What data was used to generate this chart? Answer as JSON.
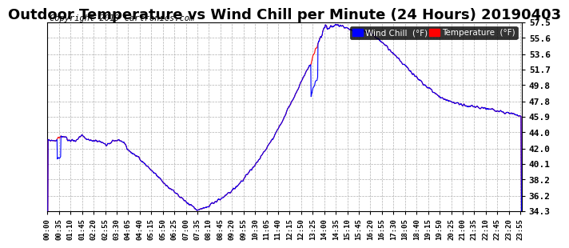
{
  "title": "Outdoor Temperature vs Wind Chill per Minute (24 Hours) 20190403",
  "copyright": "Copyright 2019 Cartronics.com",
  "ylabel_right_ticks": [
    57.5,
    55.6,
    53.6,
    51.7,
    49.8,
    47.8,
    45.9,
    44.0,
    42.0,
    40.1,
    38.2,
    36.2,
    34.3
  ],
  "ylim": [
    34.3,
    57.5
  ],
  "xlim_minutes": [
    0,
    1439
  ],
  "temp_color": "#ff0000",
  "wind_chill_color": "#0000ff",
  "legend_wind_chill_bg": "#0000ff",
  "legend_temp_bg": "#ff0000",
  "grid_color": "#b0b0b0",
  "background_color": "#ffffff",
  "title_fontsize": 13,
  "copyright_fontsize": 7.5,
  "xtick_interval_minutes": 35
}
